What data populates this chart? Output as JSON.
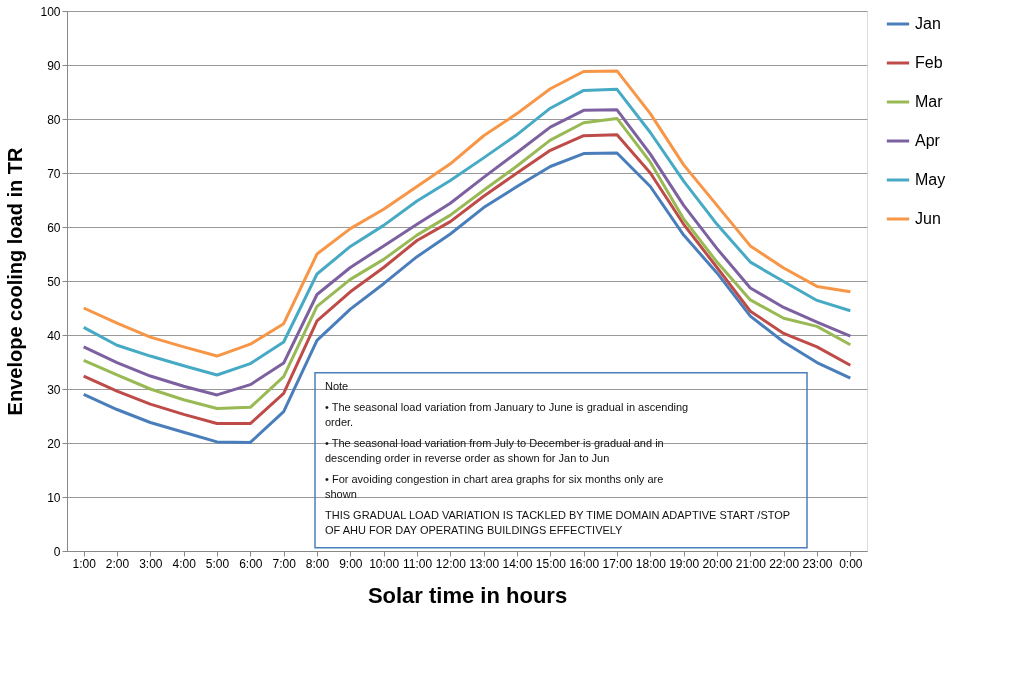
{
  "chart_data": {
    "type": "line",
    "xlabel": "Solar time in hours",
    "ylabel": "Envelope cooling load in TR",
    "categories": [
      "1:00",
      "2:00",
      "3:00",
      "4:00",
      "5:00",
      "6:00",
      "7:00",
      "8:00",
      "9:00",
      "10:00",
      "11:00",
      "12:00",
      "13:00",
      "14:00",
      "15:00",
      "16:00",
      "17:00",
      "18:00",
      "19:00",
      "20:00",
      "21:00",
      "22:00",
      "23:00",
      "0:00"
    ],
    "series": [
      {
        "name": "Jan",
        "color": "#4a7ebb",
        "values": [
          29,
          26.2,
          23.8,
          22,
          20.2,
          20.1,
          25.8,
          39,
          44.8,
          49.5,
          54.5,
          58.7,
          63.6,
          67.5,
          71.2,
          73.6,
          73.7,
          67.5,
          58.5,
          51.5,
          43.5,
          38.7,
          34.9,
          32
        ]
      },
      {
        "name": "Feb",
        "color": "#be4b48",
        "values": [
          32.4,
          29.6,
          27.2,
          25.3,
          23.6,
          23.6,
          29.2,
          42.6,
          48,
          52.5,
          57.5,
          61,
          65.7,
          70,
          74.2,
          76.9,
          77.1,
          70,
          60.5,
          52.5,
          44.4,
          40.3,
          37.8,
          34.4
        ]
      },
      {
        "name": "Mar",
        "color": "#98b954",
        "values": [
          35.3,
          32.6,
          30,
          28,
          26.4,
          26.6,
          32.3,
          45.3,
          50.3,
          54,
          58.5,
          62.2,
          66.8,
          71.3,
          76.1,
          79.3,
          80.1,
          72,
          61.5,
          53.5,
          46.5,
          43.1,
          41.6,
          38.2
        ]
      },
      {
        "name": "Apr",
        "color": "#7d60a0",
        "values": [
          37.8,
          34.9,
          32.4,
          30.5,
          28.9,
          30.8,
          34.8,
          47.5,
          52.5,
          56.5,
          60.5,
          64.4,
          69.2,
          73.8,
          78.5,
          81.6,
          81.7,
          73.5,
          64,
          56,
          48.7,
          45.1,
          42.4,
          39.8
        ]
      },
      {
        "name": "May",
        "color": "#46aac5",
        "values": [
          41.4,
          38.1,
          36.1,
          34.3,
          32.6,
          34.7,
          38.7,
          51.3,
          56.4,
          60.3,
          64.8,
          68.6,
          72.8,
          77.1,
          82,
          85.3,
          85.5,
          77.5,
          68.5,
          60.5,
          53.5,
          49.9,
          46.4,
          44.5
        ]
      },
      {
        "name": "Jun",
        "color": "#f79646",
        "values": [
          45,
          42.2,
          39.6,
          37.8,
          36.1,
          38.3,
          42.1,
          55,
          59.7,
          63.3,
          67.5,
          71.7,
          76.9,
          81,
          85.6,
          88.8,
          88.9,
          81,
          71.5,
          64,
          56.5,
          52.4,
          49,
          48
        ]
      }
    ],
    "ylim": [
      0,
      100
    ],
    "yticks": [
      0,
      10,
      20,
      30,
      40,
      50,
      60,
      70,
      80,
      90,
      100
    ],
    "grid": "y",
    "legend": "right",
    "marker": "none",
    "line_style": "solid",
    "annotations": [
      "Note",
      "• The seasonal load variation from January to June is gradual in ascending order.",
      "• The seasonal load variation from July to December is gradual and in descending order in reverse order as shown for Jan to Jun",
      "• For avoiding congestion in chart area graphs for six months only are shown",
      "THIS GRADUAL LOAD VARIATION IS TACKLED BY TIME DOMAIN ADAPTIVE START /STOP OF AHU FOR DAY OPERATING BUILDINGS EFFECTIVELY"
    ]
  }
}
